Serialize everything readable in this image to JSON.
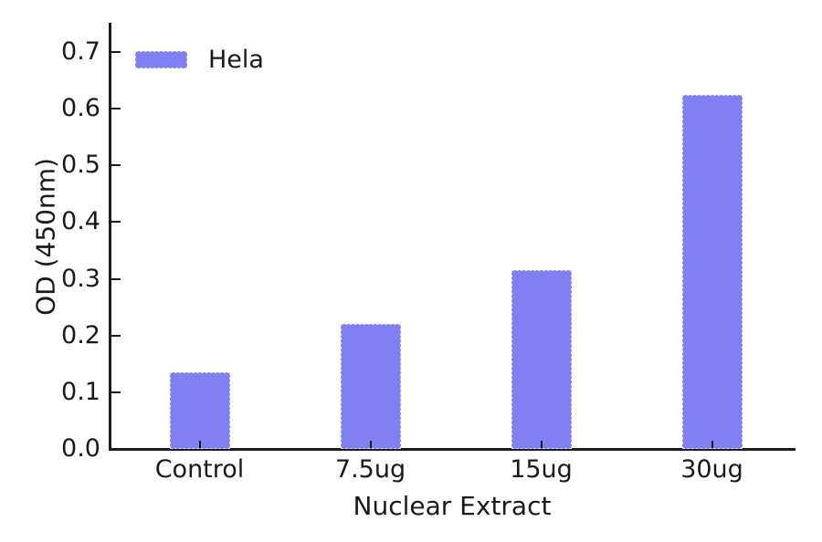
{
  "figure": {
    "background": "#ffffff",
    "text_color": "#1a1a1a",
    "spine_color": "#1c1c1c"
  },
  "chart_data": {
    "type": "bar",
    "title": "",
    "xlabel": "Nuclear Extract",
    "ylabel": "OD (450nm)",
    "categories": [
      "Control",
      "7.5ug",
      "15ug",
      "30ug"
    ],
    "series": [
      {
        "name": "Hela",
        "color": "#8080f2",
        "values": [
          0.135,
          0.22,
          0.315,
          0.625
        ]
      }
    ],
    "ylim": [
      0.0,
      0.7
    ],
    "ytick_step": 0.1,
    "ytick_labels": [
      "0.0",
      "0.1",
      "0.2",
      "0.3",
      "0.4",
      "0.5",
      "0.6",
      "0.7"
    ],
    "grid": false,
    "legend": {
      "position": "upper-left",
      "entries": [
        {
          "label": "Hela",
          "swatch_color": "#8080f2"
        }
      ]
    }
  }
}
